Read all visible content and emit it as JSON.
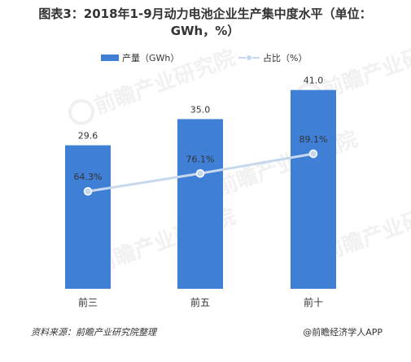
{
  "header": {
    "title_line1": "图表3：2018年1-9月动力电池企业生产集中度水平（单位：",
    "title_line2": "GWh，%）"
  },
  "legend": {
    "bar_label": "产量（GWh）",
    "line_label": "占比（%）"
  },
  "footer": {
    "source": "资料来源：前瞻产业研究院整理",
    "brand": "@前瞻经济学人APP"
  },
  "watermark": {
    "text": "前瞻产业研究院"
  },
  "colors": {
    "bar": "#3f7fd6",
    "line": "#c7d8ee",
    "marker_fill": "#c7d8ee",
    "marker_stroke": "#ffffff",
    "text": "#333333"
  },
  "chart_data": {
    "type": "bar",
    "categories": [
      "前三",
      "前五",
      "前十"
    ],
    "series": [
      {
        "name": "产量（GWh）",
        "type": "bar",
        "values": [
          29.6,
          35.0,
          41.0
        ],
        "labels": [
          "29.6",
          "35.0",
          "41.0"
        ]
      },
      {
        "name": "占比（%）",
        "type": "line",
        "values": [
          64.3,
          76.1,
          89.1
        ],
        "labels": [
          "64.3%",
          "76.1%",
          "89.1%"
        ]
      }
    ],
    "title": "图表3：2018年1-9月动力电池企业生产集中度水平（单位：GWh，%）",
    "xlabel": "",
    "ylabel": "",
    "bar_ylim": [
      0,
      50
    ],
    "line_ylim": [
      0,
      160
    ],
    "grid": false,
    "legend_position": "top-center"
  }
}
